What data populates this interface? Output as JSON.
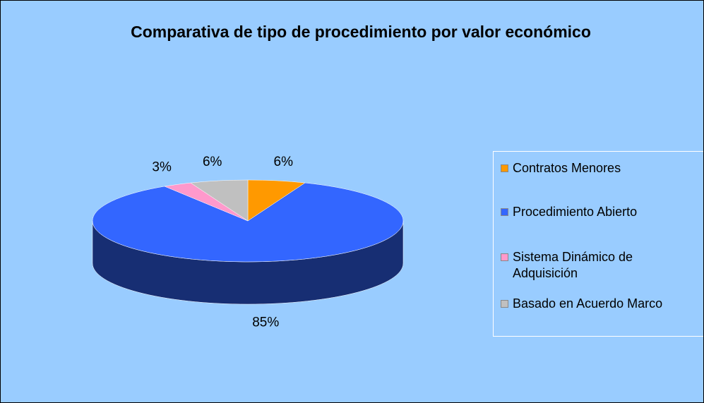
{
  "chart_data": {
    "type": "pie",
    "title": "Comparativa de tipo de procedimiento por valor económico",
    "categories": [
      "Contratos Menores",
      "Procedimiento Abierto",
      "Sistema Dinámico de Adquisición",
      "Basado en Acuerdo Marco"
    ],
    "values": [
      6,
      85,
      3,
      6
    ],
    "value_labels": [
      "6%",
      "85%",
      "3%",
      "6%"
    ],
    "colors": [
      "#FF9900",
      "#3366FF",
      "#FF99CC",
      "#C0C0C0"
    ],
    "legend": "right"
  }
}
